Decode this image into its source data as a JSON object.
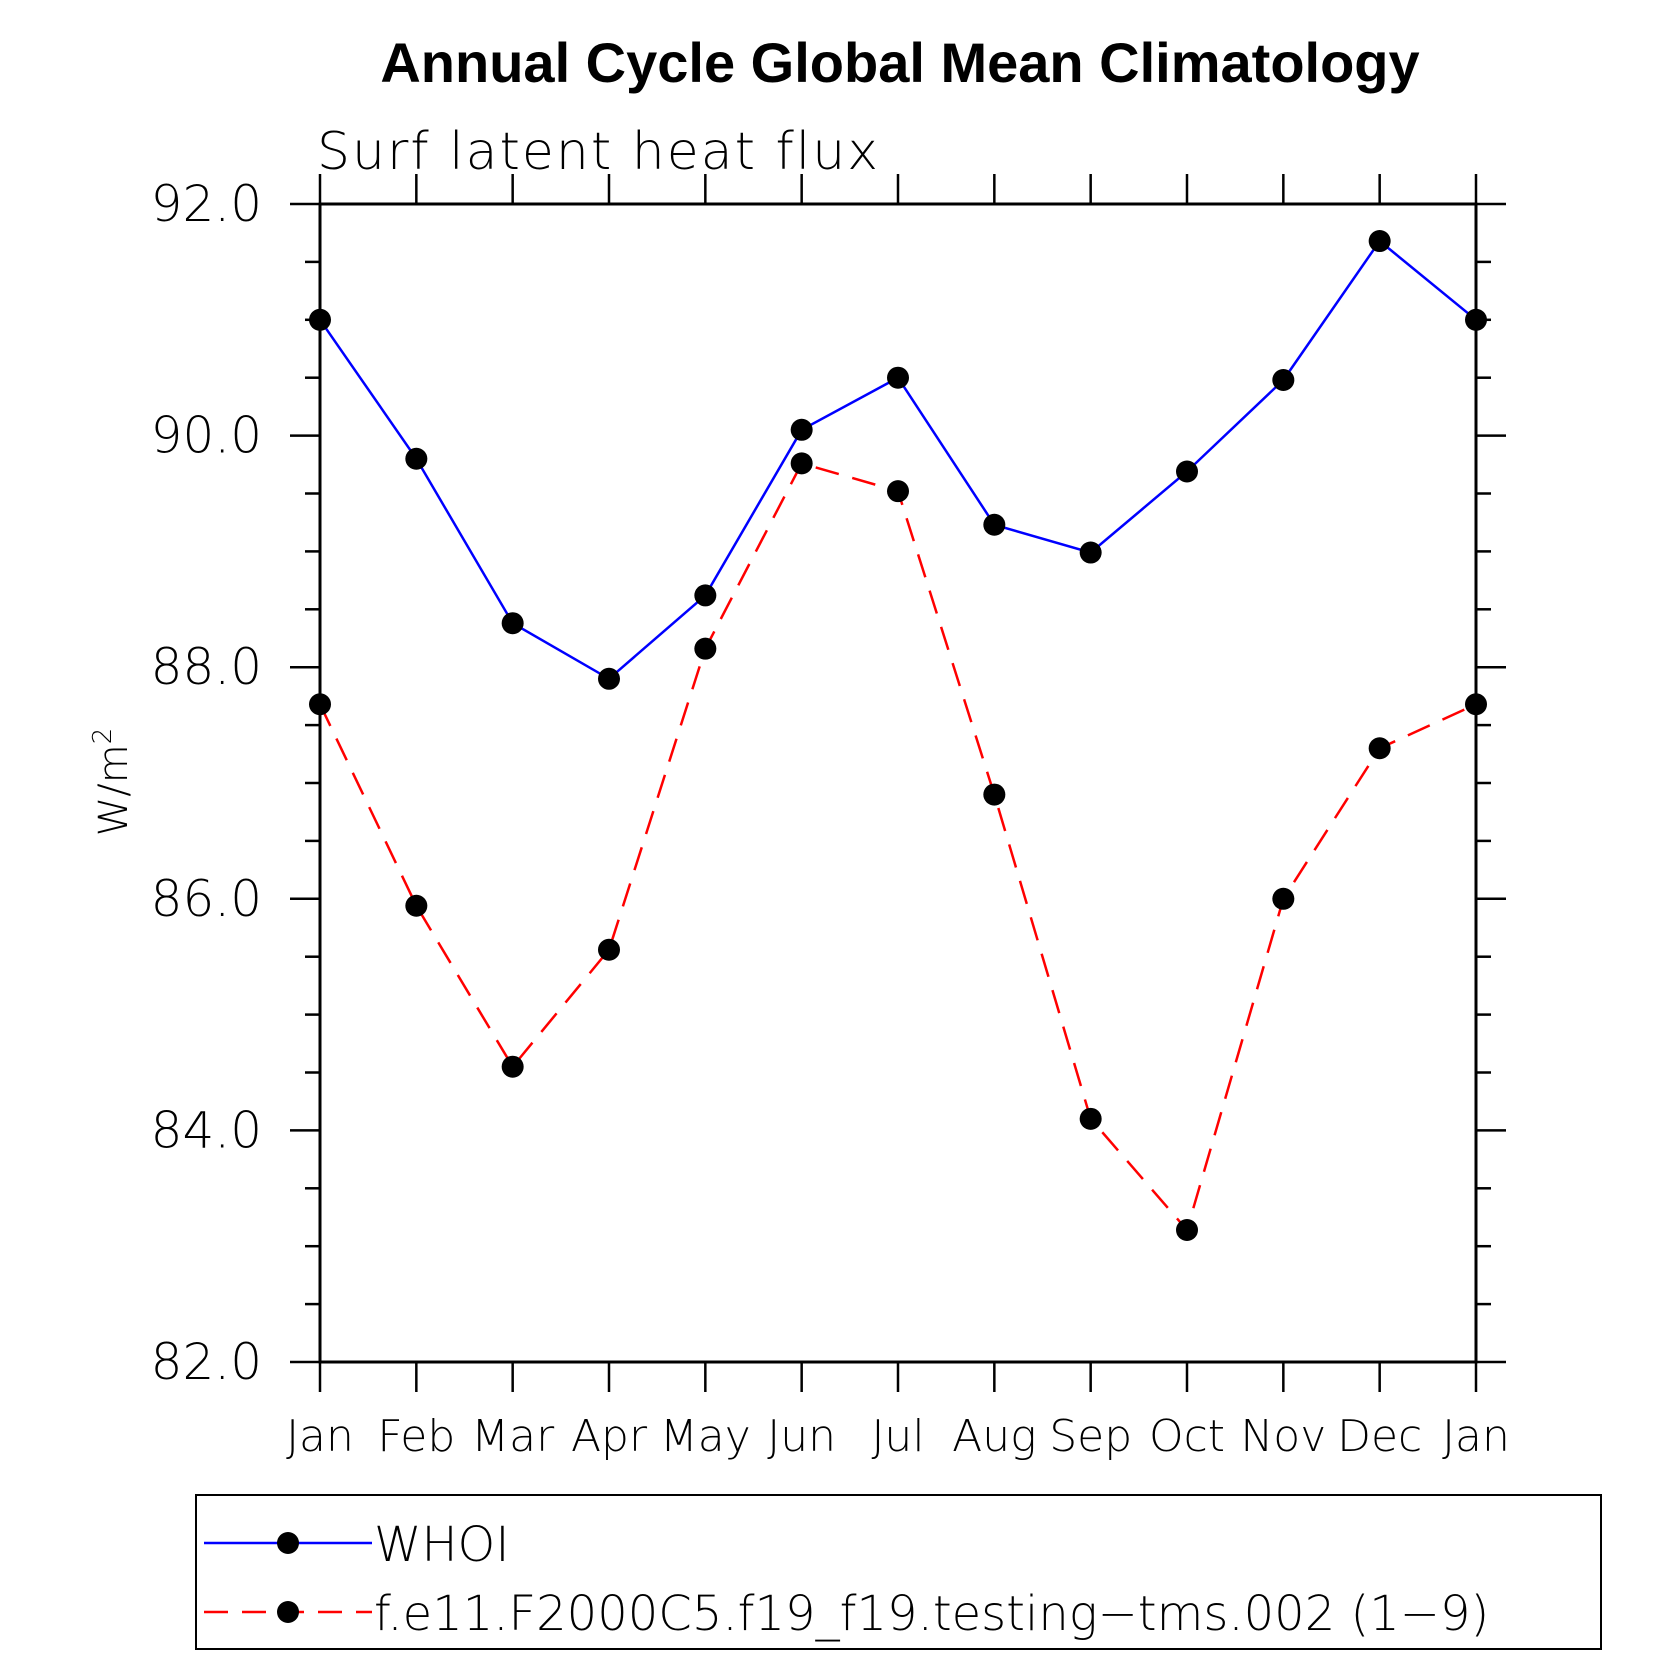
{
  "chart_data": {
    "type": "line",
    "title": "Annual Cycle Global Mean Climatology",
    "subtitle": "Surf latent heat flux",
    "xlabel": "",
    "ylabel": "W/m",
    "ylabel_superscript": "2",
    "categories": [
      "Jan",
      "Feb",
      "Mar",
      "Apr",
      "May",
      "Jun",
      "Jul",
      "Aug",
      "Sep",
      "Oct",
      "Nov",
      "Dec",
      "Jan"
    ],
    "ylim": [
      82.0,
      92.0
    ],
    "yticks": [
      82.0,
      84.0,
      86.0,
      88.0,
      90.0,
      92.0
    ],
    "ytick_labels": [
      "82.0",
      "84.0",
      "86.0",
      "88.0",
      "90.0",
      "92.0"
    ],
    "series": [
      {
        "name": "WHOI",
        "color": "#0000ff",
        "dash": "solid",
        "values": [
          91.0,
          89.8,
          88.38,
          87.9,
          88.62,
          90.05,
          90.5,
          89.23,
          88.99,
          89.69,
          90.48,
          91.68,
          91.0
        ]
      },
      {
        "name": "f.e11.F2000C5.f19_f19.testing−tms.002 (1−9)",
        "color": "#ff0000",
        "dash": "dashed",
        "values": [
          87.68,
          85.94,
          84.55,
          85.56,
          88.16,
          89.76,
          89.52,
          86.9,
          84.1,
          83.14,
          86.0,
          87.3,
          87.68
        ]
      }
    ],
    "legend_position": "bottom"
  }
}
